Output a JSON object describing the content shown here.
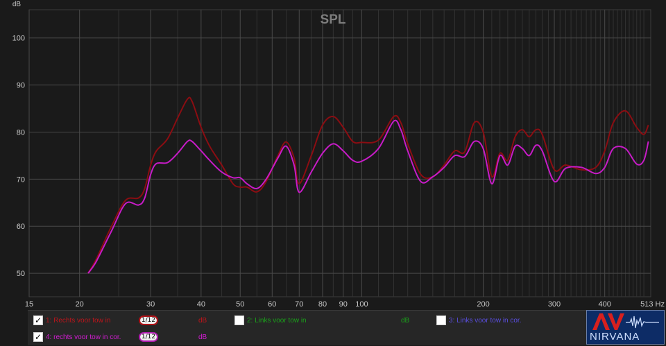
{
  "chart_data": {
    "type": "line",
    "title": "SPL",
    "ylabel": "dB",
    "x_unit": "Hz",
    "x_scale": "log",
    "xlim": [
      15,
      520
    ],
    "ylim": [
      45,
      106
    ],
    "grid": true,
    "x_ticks": [
      15,
      20,
      30,
      40,
      50,
      60,
      70,
      80,
      90,
      100,
      200,
      300,
      400,
      513
    ],
    "x_tick_labels": [
      "15",
      "20",
      "30",
      "40",
      "50",
      "60",
      "70",
      "80",
      "90",
      "100",
      "200",
      "300",
      "400",
      "513 Hz"
    ],
    "y_ticks": [
      50,
      60,
      70,
      80,
      90,
      100
    ],
    "series": [
      {
        "name": "1: Rechts voor tow in",
        "color": "#8b0d12",
        "x": [
          21,
          22,
          24,
          26,
          28,
          29,
          30,
          31,
          33,
          35,
          37,
          38,
          40,
          42,
          45,
          48,
          50,
          52,
          55,
          58,
          62,
          65,
          68,
          70,
          75,
          80,
          85,
          90,
          95,
          100,
          110,
          120,
          125,
          130,
          140,
          150,
          160,
          170,
          180,
          190,
          200,
          210,
          220,
          230,
          240,
          250,
          260,
          270,
          280,
          300,
          320,
          350,
          380,
          400,
          420,
          450,
          480,
          500,
          513
        ],
        "y": [
          50,
          53,
          60,
          65.5,
          66,
          68,
          73,
          76,
          78.5,
          83,
          87,
          86.5,
          81,
          77,
          73,
          69,
          68.3,
          68.3,
          67.3,
          69.5,
          75,
          77.9,
          74.5,
          69,
          75,
          81.5,
          83.3,
          81,
          78,
          77.8,
          78.3,
          83.3,
          82,
          77.5,
          71,
          70.5,
          73,
          76,
          75.8,
          82,
          80,
          70.5,
          75.5,
          74,
          79,
          80.5,
          79,
          80.5,
          79.5,
          72,
          73,
          72,
          72.5,
          76,
          82,
          84.5,
          81,
          79.5,
          81.5
        ]
      },
      {
        "name": "4: rechts voor tow in cor.",
        "color": "#c71bc7",
        "x": [
          21,
          22,
          24,
          26,
          28,
          29,
          30,
          31,
          33,
          35,
          37,
          38,
          40,
          42,
          45,
          48,
          50,
          52,
          55,
          58,
          62,
          65,
          68,
          70,
          75,
          80,
          85,
          90,
          95,
          100,
          110,
          120,
          125,
          130,
          140,
          150,
          160,
          170,
          180,
          190,
          200,
          210,
          220,
          230,
          240,
          250,
          260,
          270,
          280,
          300,
          320,
          350,
          380,
          400,
          420,
          450,
          480,
          500,
          513
        ],
        "y": [
          50,
          52.5,
          59,
          64.8,
          64.5,
          66,
          71,
          73.3,
          73.5,
          75.5,
          78,
          78,
          76,
          74,
          71.5,
          70.3,
          70.3,
          69,
          68,
          70,
          74.5,
          77,
          73,
          67.2,
          71.5,
          75.5,
          77.5,
          76,
          74,
          73.8,
          76.5,
          82.3,
          80.5,
          76,
          69.5,
          70.5,
          72.5,
          75,
          74.8,
          78,
          76.5,
          69,
          75,
          73,
          77,
          76.5,
          75,
          77.2,
          76,
          69.5,
          72.3,
          72.5,
          71.2,
          72.5,
          76.5,
          76.5,
          73.2,
          74,
          78
        ]
      }
    ]
  },
  "legend": {
    "items": [
      {
        "checked": "✓",
        "label": "1: Rechts voor tow in",
        "smoothing": "1/12",
        "unit": "dB",
        "color": "#8b0d12",
        "label_color": "#c0141a"
      },
      {
        "checked": "",
        "label": "2: Links voor tow in",
        "unit": "dB",
        "color": "#1aa01a",
        "label_color": "#1aa01a"
      },
      {
        "checked": "",
        "label": "3: Links voor tow in cor.",
        "color": "#4b3fd0",
        "label_color": "#5a4ee0"
      },
      {
        "checked": "✓",
        "label": "4: rechts voor tow in cor.",
        "smoothing": "1/12",
        "unit": "dB",
        "color": "#c71bc7",
        "label_color": "#d21cd2"
      }
    ]
  },
  "logo": {
    "text": "NIRVANA",
    "colors": {
      "background": "#0d2c66",
      "accent": "#d8201e"
    }
  }
}
